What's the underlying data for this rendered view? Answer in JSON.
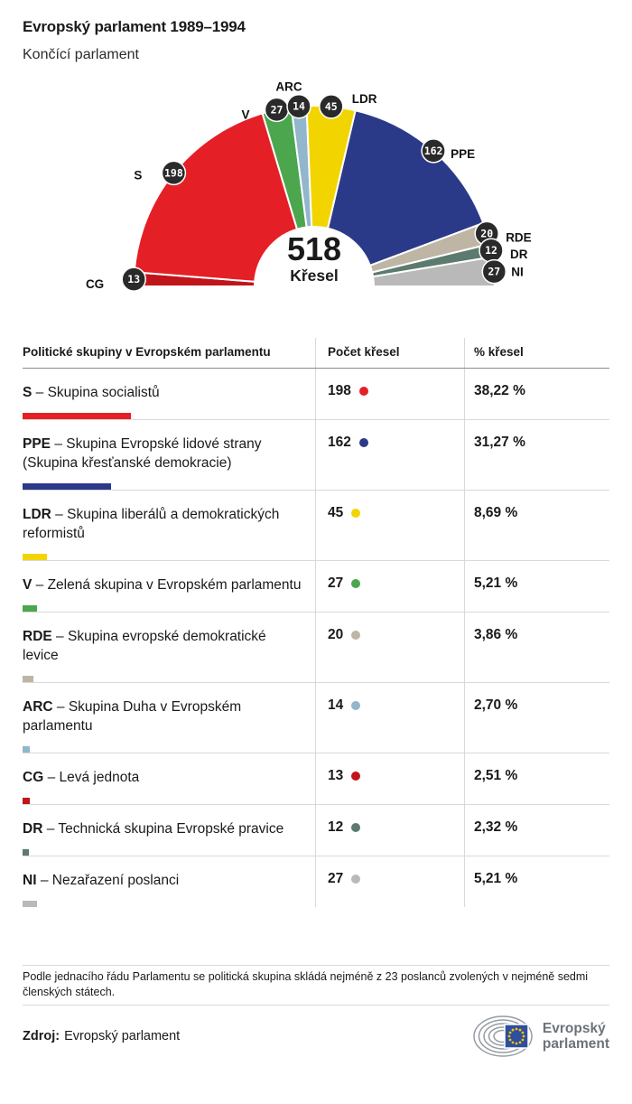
{
  "header": {
    "title": "Evropský parlament 1989–1994",
    "subtitle": "Končící parlament"
  },
  "chart_data": {
    "type": "pie",
    "subtype": "hemicycle-half-donut",
    "title": "Evropský parlament 1989–1994",
    "center_total": "518",
    "center_label": "Křesel",
    "total_seats": 518,
    "order": "left-to-right",
    "badge_fill": "#2a2a2a",
    "series": [
      {
        "code": "CG",
        "name": "Levá jednota",
        "seats": 13,
        "percent": "2,51 %",
        "color": "#c0151b"
      },
      {
        "code": "S",
        "name": "Skupina socialistů",
        "seats": 198,
        "percent": "38,22 %",
        "color": "#e42026"
      },
      {
        "code": "V",
        "name": "Zelená skupina v Evropském parlamentu",
        "seats": 27,
        "percent": "5,21 %",
        "color": "#4ba64e"
      },
      {
        "code": "ARC",
        "name": "Skupina Duha v Evropském parlamentu",
        "seats": 14,
        "percent": "2,70 %",
        "color": "#92b6cc"
      },
      {
        "code": "LDR",
        "name": "Skupina liberálů a demokratických reformistů",
        "seats": 45,
        "percent": "8,69 %",
        "color": "#f2d500"
      },
      {
        "code": "PPE",
        "name": "Skupina Evropské lidové strany (Skupina křesťanské demokracie)",
        "seats": 162,
        "percent": "31,27 %",
        "color": "#2b3a88"
      },
      {
        "code": "RDE",
        "name": "Skupina evropské demokratické levice",
        "seats": 20,
        "percent": "3,86 %",
        "color": "#beb5a4"
      },
      {
        "code": "DR",
        "name": "Technická skupina Evropské pravice",
        "seats": 12,
        "percent": "2,32 %",
        "color": "#5d7a6e"
      },
      {
        "code": "NI",
        "name": "Nezařazení poslanci",
        "seats": 27,
        "percent": "5,21 %",
        "color": "#b9b9b9"
      }
    ]
  },
  "table": {
    "headers": [
      "Politické skupiny v Evropském parlamentu",
      "Počet křesel",
      "% křesel"
    ],
    "separator": "–",
    "rows": [
      {
        "code": "S",
        "name": "Skupina socialistů",
        "seats": "198",
        "percent": "38,22 %",
        "pct": 38.22,
        "color": "#e42026"
      },
      {
        "code": "PPE",
        "name": "Skupina Evropské lidové strany (Skupina křesťanské demokracie)",
        "seats": "162",
        "percent": "31,27 %",
        "pct": 31.27,
        "color": "#2b3a88"
      },
      {
        "code": "LDR",
        "name": "Skupina liberálů a demokratických reformistů",
        "seats": "45",
        "percent": "8,69 %",
        "pct": 8.69,
        "color": "#f2d500"
      },
      {
        "code": "V",
        "name": "Zelená skupina v Evropském parlamentu",
        "seats": "27",
        "percent": "5,21 %",
        "pct": 5.21,
        "color": "#4ba64e"
      },
      {
        "code": "RDE",
        "name": "Skupina evropské demokratické levice",
        "seats": "20",
        "percent": "3,86 %",
        "pct": 3.86,
        "color": "#beb5a4"
      },
      {
        "code": "ARC",
        "name": "Skupina Duha v Evropském parlamentu",
        "seats": "14",
        "percent": "2,70 %",
        "pct": 2.7,
        "color": "#92b6cc"
      },
      {
        "code": "CG",
        "name": "Levá jednota",
        "seats": "13",
        "percent": "2,51 %",
        "pct": 2.51,
        "color": "#c0151b"
      },
      {
        "code": "DR",
        "name": "Technická skupina Evropské pravice",
        "seats": "12",
        "percent": "2,32 %",
        "pct": 2.32,
        "color": "#5d7a6e"
      },
      {
        "code": "NI",
        "name": "Nezařazení poslanci",
        "seats": "27",
        "percent": "5,21 %",
        "pct": 5.21,
        "color": "#b9b9b9"
      }
    ]
  },
  "footer": {
    "note": "Podle jednacího řádu Parlamentu se politická skupina skládá nejméně z 23 poslanců zvolených v nejméně sedmi členských státech.",
    "source_label": "Zdroj:",
    "source": "Evropský parlament",
    "logo": {
      "line1": "Evropský",
      "line2": "parlament",
      "flag_color": "#2e4e9e",
      "star_color": "#f5c400"
    }
  }
}
